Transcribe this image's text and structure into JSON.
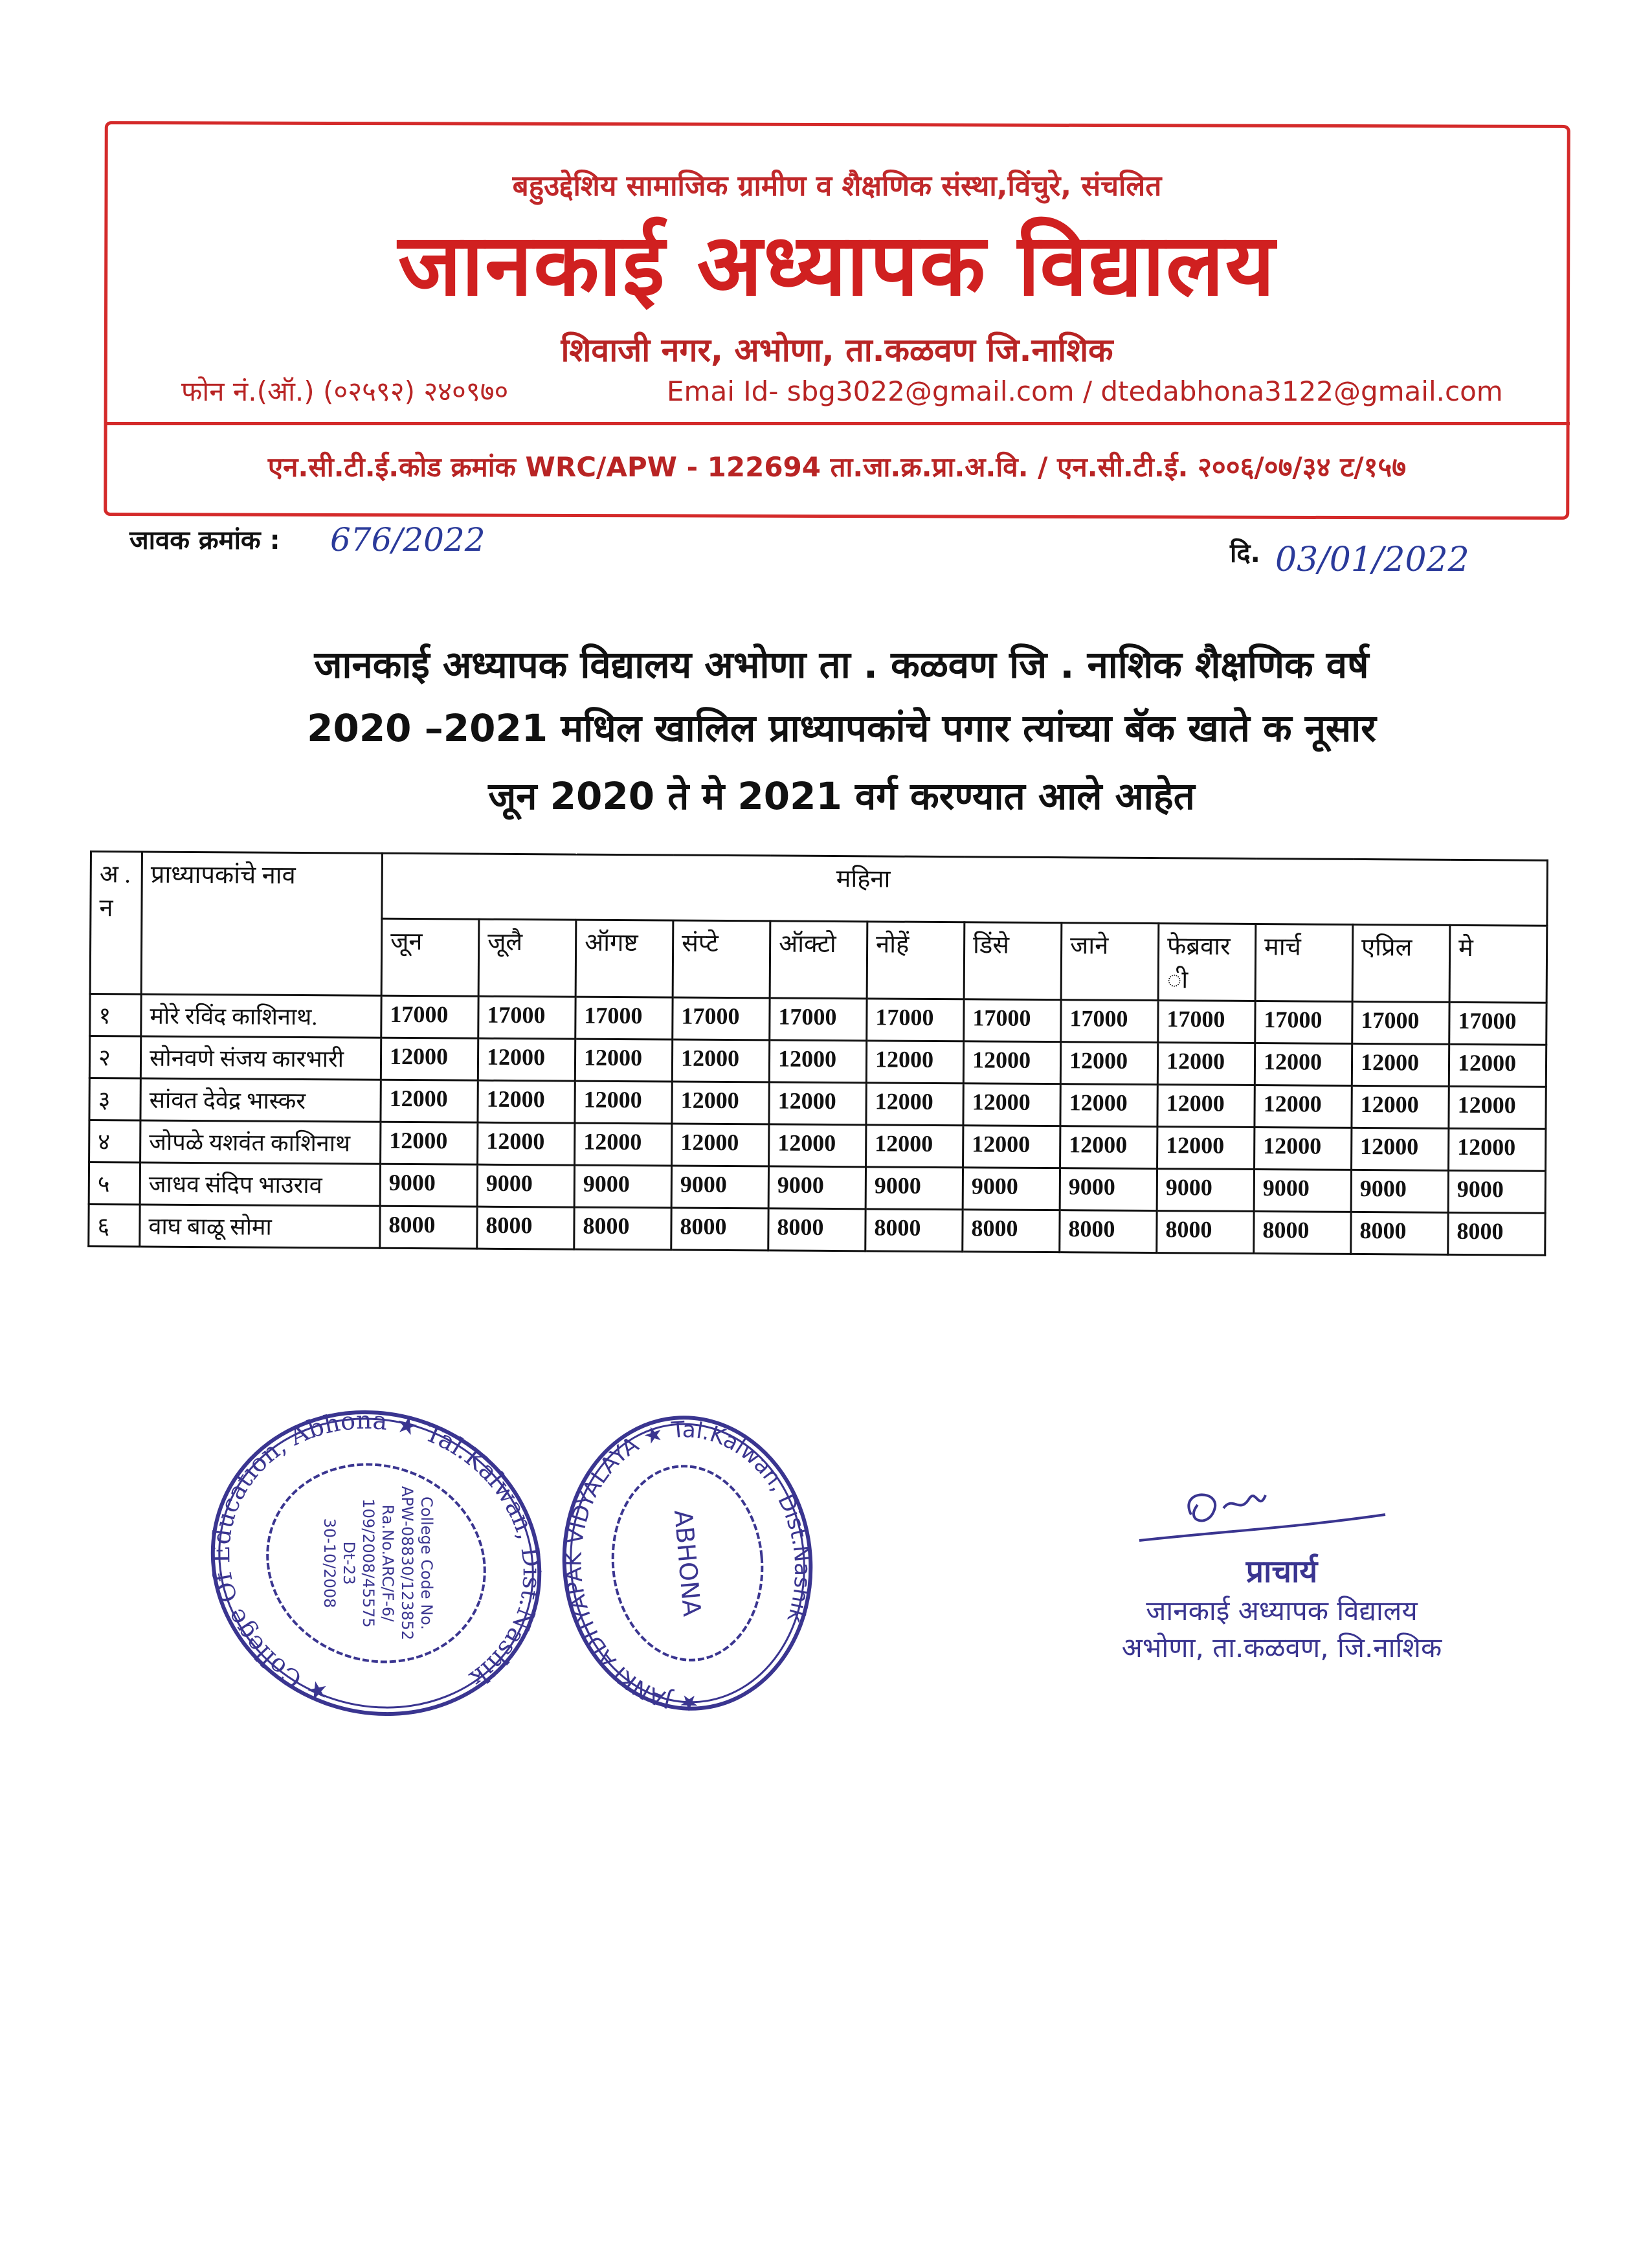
{
  "letterhead": {
    "society": "बहुउद्देशिय सामाजिक ग्रामीण व शैक्षणिक संस्था,विंचुरे, संचलित",
    "college_name": "जानकाई अध्यापक विद्यालय",
    "address": "शिवाजी नगर, अभोणा, ता.कळवण जि.नाशिक",
    "phone": "फोन नं.(ऑ.) (०२५९२) २४०९७०",
    "emails": "Emai Id- sbg3022@gmail.com  / dtedabhona3122@gmail.com",
    "ncte": "एन.सी.टी.ई.कोड क्रमांक WRC/APW - 122694 ता.जा.क्र.प्रा.अ.वि. / एन.सी.टी.ई. २००६/०७/३४ ट/१५७",
    "accent_color": "#d02020"
  },
  "meta": {
    "inward_label": "जावक क्रमांक :",
    "inward_no": "676/2022",
    "date_label": "दि.",
    "date_value": "03/01/2022"
  },
  "heading": {
    "line1": "जानकाई अध्यापक विद्यालय अभोणा ता . कळवण जि . नाशिक शैक्षणिक वर्ष",
    "line2": "2020 –2021 मधिल खालिल प्राध्यापकांचे पगार त्यांच्या बॅक खाते क नूसार",
    "line3": "जून 2020 ते मे 2021 वर्ग करण्यात आले आहेत"
  },
  "table": {
    "sr_header": "अ . न",
    "name_header": "प्राध्यापकांचे नाव",
    "month_group": "महिना",
    "months": [
      "जून",
      "जूलै",
      "ऑगष्ट",
      "संप्टे",
      "ऑक्टो",
      "नोहें",
      "डिंसे",
      "जाने",
      "फेब्रवार ी",
      "मार्च",
      "एप्रिल",
      "मे"
    ],
    "rows": [
      {
        "sr": "१",
        "name": "मोरे रविंद काशिनाथ.",
        "values": [
          "17000",
          "17000",
          "17000",
          "17000",
          "17000",
          "17000",
          "17000",
          "17000",
          "17000",
          "17000",
          "17000",
          "17000"
        ]
      },
      {
        "sr": "२",
        "name": "सोनवणे संजय कारभारी",
        "values": [
          "12000",
          "12000",
          "12000",
          "12000",
          "12000",
          "12000",
          "12000",
          "12000",
          "12000",
          "12000",
          "12000",
          "12000"
        ]
      },
      {
        "sr": "३",
        "name": "सांवत देवेद्र भास्कर",
        "values": [
          "12000",
          "12000",
          "12000",
          "12000",
          "12000",
          "12000",
          "12000",
          "12000",
          "12000",
          "12000",
          "12000",
          "12000"
        ]
      },
      {
        "sr": "४",
        "name": "जोपळे यशवंत काशिनाथ",
        "values": [
          "12000",
          "12000",
          "12000",
          "12000",
          "12000",
          "12000",
          "12000",
          "12000",
          "12000",
          "12000",
          "12000",
          "12000"
        ]
      },
      {
        "sr": "५",
        "name": "जाधव संदिप भाउराव",
        "values": [
          "9000",
          "9000",
          "9000",
          "9000",
          "9000",
          "9000",
          "9000",
          "9000",
          "9000",
          "9000",
          "9000",
          "9000"
        ]
      },
      {
        "sr": "६",
        "name": "वाघ बाळू सोमा",
        "values": [
          "8000",
          "8000",
          "8000",
          "8000",
          "8000",
          "8000",
          "8000",
          "8000",
          "8000",
          "8000",
          "8000",
          "8000"
        ]
      }
    ]
  },
  "stamps": {
    "color": "#3a3590",
    "stamp1_ring": "★ College Of Education, Abhona ★ Tal.Kalwan, Dist.Nashik",
    "stamp1_center": [
      "College Code No.",
      "APW-08830/123852",
      "Ra.No.ARC/F-6/",
      "109/2008/45575",
      "Dt-23",
      "30-10/2008"
    ],
    "stamp2_ring": "★ JANKI ADHYAPAK VIDYALAYA ★ Tal.Kalwan, Dist.Nashik",
    "stamp2_center": "ABHONA"
  },
  "signature": {
    "title": "प्राचार्य",
    "line1": "जानकाई अध्यापक विद्यालय",
    "line2": "अभोणा, ता.कळवण, जि.नाशिक"
  }
}
